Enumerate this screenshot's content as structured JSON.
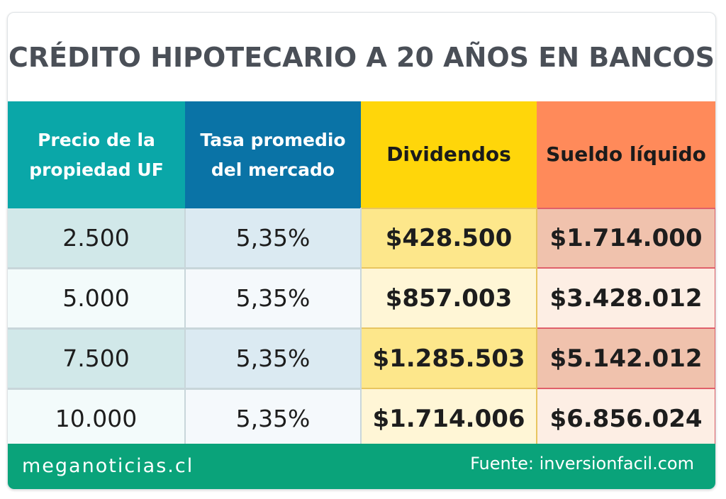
{
  "title": "CRÉDITO HIPOTECARIO A 20 AÑOS EN BANCOS",
  "headers": {
    "price": "Precio de la propiedad UF",
    "rate": "Tasa promedio del mercado",
    "dividends": "Dividendos",
    "salary": "Sueldo líquido"
  },
  "rows": [
    {
      "price": "2.500",
      "rate": "5,35%",
      "dividends": "$428.500",
      "salary": "$1.714.000"
    },
    {
      "price": "5.000",
      "rate": "5,35%",
      "dividends": "$857.003",
      "salary": "$3.428.012"
    },
    {
      "price": "7.500",
      "rate": "5,35%",
      "dividends": "$1.285.503",
      "salary": "$5.142.012"
    },
    {
      "price": "10.000",
      "rate": "5,35%",
      "dividends": "$1.714.006",
      "salary": "$6.856.024"
    }
  ],
  "footer": {
    "brand": "meganoticias.cl",
    "source": "Fuente: inversionfacil.com"
  },
  "colors": {
    "header_price": "#0aa7a8",
    "header_rate": "#0a73a6",
    "header_dividends": "#ffd60a",
    "header_salary": "#ff8a5a",
    "footer": "#0aa37a",
    "title_text": "#4a4f57"
  }
}
